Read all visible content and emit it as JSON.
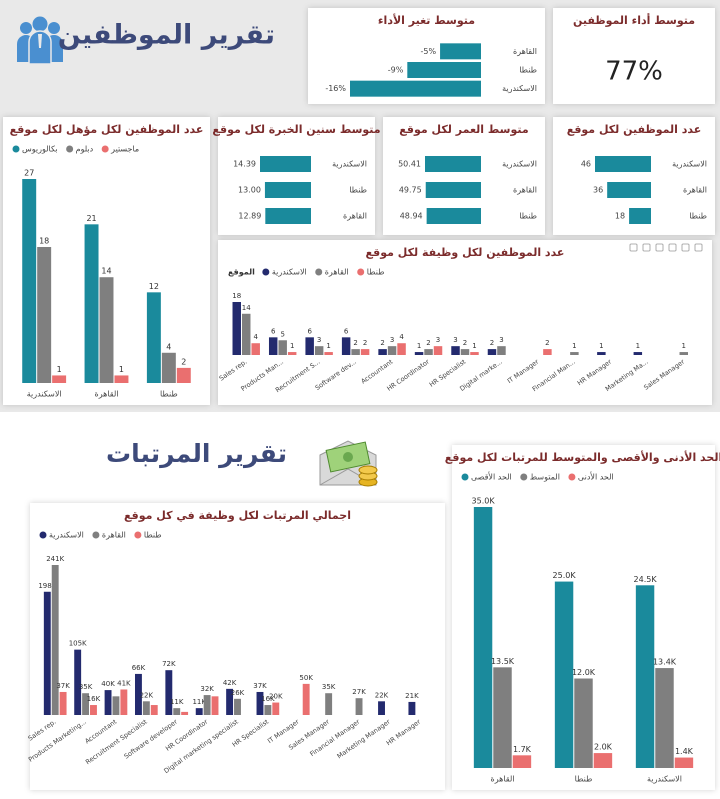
{
  "header": {
    "title": "تقرير الموظفين"
  },
  "salary_header": {
    "title": "تقرير المرتبات"
  },
  "chart_data": [
    {
      "type": "hbar",
      "title": "متوسط تغير الأداء",
      "color": "#1a8a9c",
      "categories": [
        "القاهرة",
        "طنطا",
        "الاسكندرية"
      ],
      "values": [
        -5,
        -9,
        -16
      ],
      "value_labels": [
        "-5%",
        "-9%",
        "-16%"
      ]
    },
    {
      "type": "kpi",
      "title": "متوسط أداء الموظفين",
      "value": 77,
      "value_label": "77%"
    },
    {
      "type": "vbar",
      "title": "عدد الموظفين لكل مؤهل لكل موقع",
      "categories": [
        "الاسكندرية",
        "القاهرة",
        "طنطا"
      ],
      "series": [
        {
          "name": "بكالوريوس",
          "color": "#1a8a9c",
          "values": [
            27,
            21,
            12
          ]
        },
        {
          "name": "دبلوم",
          "color": "#7f7f7f",
          "values": [
            18,
            14,
            4
          ]
        },
        {
          "name": "ماجستير",
          "color": "#ea6f6f",
          "values": [
            1,
            1,
            2
          ]
        }
      ]
    },
    {
      "type": "hbar",
      "title": "متوسط سنين الخبرة لكل موقع",
      "color": "#1a8a9c",
      "categories": [
        "الاسكندرية",
        "طنطا",
        "القاهرة"
      ],
      "values": [
        14.39,
        13.0,
        12.89
      ],
      "value_labels": [
        "14.39",
        "13.00",
        "12.89"
      ]
    },
    {
      "type": "hbar",
      "title": "متوسط العمر لكل موقع",
      "color": "#1a8a9c",
      "categories": [
        "الاسكندرية",
        "القاهرة",
        "طنطا"
      ],
      "values": [
        50.41,
        49.75,
        48.94
      ]
    },
    {
      "type": "hbar",
      "title": "عدد الموظفين لكل موقع",
      "color": "#1a8a9c",
      "categories": [
        "الاسكندرية",
        "القاهرة",
        "طنطا"
      ],
      "values": [
        46,
        36,
        18
      ]
    },
    {
      "type": "vbar",
      "title": "عدد الموظفين لكل وظيفة لكل موقع",
      "legend_title": "الموقع",
      "categories": [
        "Sales rep.",
        "Products Man...",
        "Recruitment S...",
        "Software dev...",
        "Accountant",
        "HR Coordinator",
        "HR Specialist",
        "Digital marke...",
        "IT Manager",
        "Financial Man...",
        "HR Manager",
        "Marketing Ma...",
        "Sales Manager"
      ],
      "series": [
        {
          "name": "الاسكندرية",
          "color": "#232a6e",
          "values": [
            18,
            6,
            6,
            6,
            2,
            1,
            3,
            2,
            null,
            null,
            1,
            1,
            null
          ]
        },
        {
          "name": "القاهرة",
          "color": "#7f7f7f",
          "values": [
            14,
            5,
            3,
            2,
            3,
            2,
            2,
            3,
            null,
            1,
            null,
            null,
            1
          ]
        },
        {
          "name": "طنطا",
          "color": "#ea6f6f",
          "values": [
            4,
            1,
            1,
            2,
            4,
            3,
            1,
            null,
            2,
            null,
            null,
            null,
            null
          ]
        }
      ]
    },
    {
      "type": "vbar",
      "title": "اجمالي المرتبات لكل وظيفة في كل موقع",
      "categories": [
        "Sales rep.",
        "Products Marketing...",
        "Accountant",
        "Recruitment Specialist",
        "Software developer",
        "HR Coordinator",
        "Digital marketing specialist",
        "HR Specialist",
        "IT Manager",
        "Sales Manager",
        "Financial Manager",
        "Marketing Manager",
        "HR Manager"
      ],
      "series": [
        {
          "name": "الاسكندرية",
          "color": "#232a6e",
          "values": [
            198000,
            105000,
            40000,
            66000,
            72000,
            11000,
            42000,
            37000,
            null,
            null,
            null,
            22000,
            21000
          ],
          "value_labels": [
            "198K",
            "105K",
            "40K",
            "66K",
            "72K",
            "11K",
            "42K",
            "37K",
            null,
            null,
            null,
            "22K",
            "21K"
          ]
        },
        {
          "name": "القاهرة",
          "color": "#7f7f7f",
          "values": [
            241000,
            35000,
            30000,
            22000,
            11000,
            32000,
            26000,
            16000,
            null,
            35000,
            27000,
            null,
            null
          ],
          "value_labels": [
            "241K",
            "35K",
            null,
            "22K",
            "11K",
            "32K",
            "26K",
            "16K",
            null,
            "35K",
            "27K",
            null,
            null
          ]
        },
        {
          "name": "طنطا",
          "color": "#ea6f6f",
          "values": [
            37000,
            16000,
            41000,
            16000,
            5000,
            30000,
            null,
            20000,
            50000,
            null,
            null,
            null,
            null
          ],
          "value_labels": [
            "37K",
            "16K",
            "41K",
            null,
            null,
            null,
            null,
            "20K",
            "50K",
            null,
            null,
            null,
            null
          ]
        }
      ]
    },
    {
      "type": "vbar",
      "title": "الحد الأدنى والأقصى والمتوسط للمرتبات لكل موقع",
      "categories": [
        "القاهرة",
        "طنطا",
        "الاسكندرية"
      ],
      "series": [
        {
          "name": "الحد الأقصى",
          "color": "#1a8a9c",
          "values": [
            35000,
            25000,
            24500
          ],
          "value_labels": [
            "35.0K",
            "25.0K",
            "24.5K"
          ]
        },
        {
          "name": "المتوسط",
          "color": "#7f7f7f",
          "values": [
            13500,
            12000,
            13400
          ],
          "value_labels": [
            "13.5K",
            "12.0K",
            "13.4K"
          ]
        },
        {
          "name": "الحد الأدنى",
          "color": "#ea6f6f",
          "values": [
            1700,
            2000,
            1400
          ],
          "value_labels": [
            "1.7K",
            "2.0K",
            "1.4K"
          ]
        }
      ]
    }
  ]
}
